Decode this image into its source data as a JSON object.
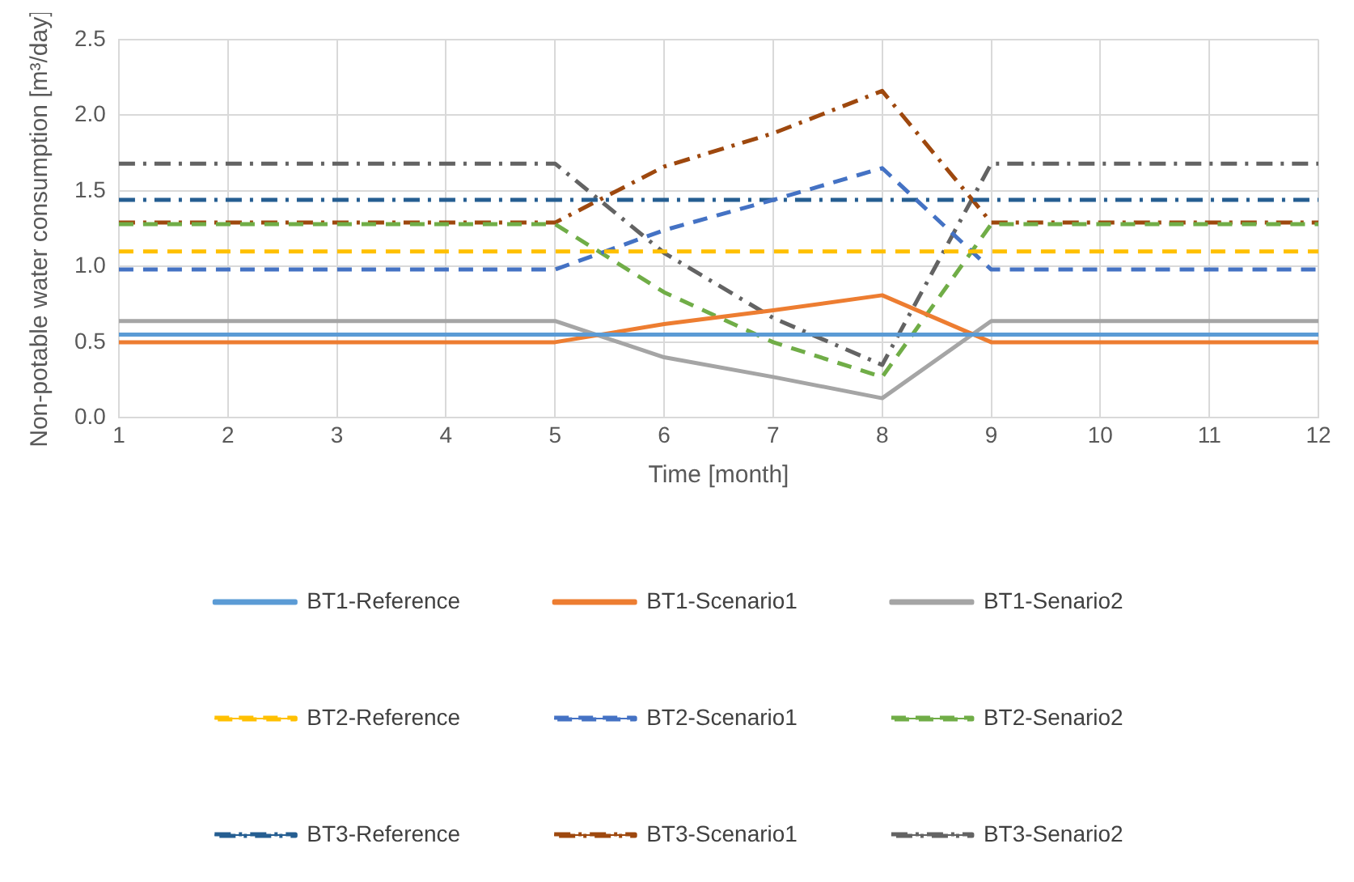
{
  "chart_data": {
    "type": "line",
    "xlabel": "Time [month]",
    "ylabel": "Non-potable water consumption [m³/day]",
    "x": [
      1,
      2,
      3,
      4,
      5,
      6,
      7,
      8,
      9,
      10,
      11,
      12
    ],
    "xlim": [
      1,
      12
    ],
    "xticks": [
      1,
      2,
      3,
      4,
      5,
      6,
      7,
      8,
      9,
      10,
      11,
      12
    ],
    "ylim": [
      0,
      2.5
    ],
    "yticks": [
      {
        "value": 0,
        "label": "0.0"
      },
      {
        "value": 0.5,
        "label": "0.5"
      },
      {
        "value": 1,
        "label": "1.0"
      },
      {
        "value": 1.5,
        "label": "1.5"
      },
      {
        "value": 2,
        "label": "2.0"
      },
      {
        "value": 2.5,
        "label": "2.5"
      }
    ],
    "grid": true,
    "legend": "bottom",
    "marker": "none",
    "series": [
      {
        "name": "BT1-Reference",
        "color": "#5b9bd5",
        "line_style": "solid",
        "values": [
          0.55,
          0.55,
          0.55,
          0.55,
          0.55,
          0.55,
          0.55,
          0.55,
          0.55,
          0.55,
          0.55,
          0.55
        ]
      },
      {
        "name": "BT1-Scenario1",
        "color": "#ed7d31",
        "line_style": "solid",
        "values": [
          0.5,
          0.5,
          0.5,
          0.5,
          0.5,
          0.62,
          0.71,
          0.81,
          0.5,
          0.5,
          0.5,
          0.5
        ]
      },
      {
        "name": "BT1-Senario2",
        "color": "#a5a5a5",
        "line_style": "solid",
        "values": [
          0.64,
          0.64,
          0.64,
          0.64,
          0.64,
          0.4,
          0.27,
          0.13,
          0.64,
          0.64,
          0.64,
          0.64
        ]
      },
      {
        "name": "BT2-Reference",
        "color": "#ffc000",
        "line_style": "dashed",
        "values": [
          1.1,
          1.1,
          1.1,
          1.1,
          1.1,
          1.1,
          1.1,
          1.1,
          1.1,
          1.1,
          1.1,
          1.1
        ]
      },
      {
        "name": "BT2-Scenario1",
        "color": "#4472c4",
        "line_style": "dashed",
        "values": [
          0.98,
          0.98,
          0.98,
          0.98,
          0.98,
          1.24,
          1.44,
          1.65,
          0.98,
          0.98,
          0.98,
          0.98
        ]
      },
      {
        "name": "BT2-Senario2",
        "color": "#70ad47",
        "line_style": "dashed",
        "values": [
          1.28,
          1.28,
          1.28,
          1.28,
          1.28,
          0.83,
          0.5,
          0.27,
          1.28,
          1.28,
          1.28,
          1.28
        ]
      },
      {
        "name": "BT3-Reference",
        "color": "#255e91",
        "line_style": "dashdot",
        "values": [
          1.44,
          1.44,
          1.44,
          1.44,
          1.44,
          1.44,
          1.44,
          1.44,
          1.44,
          1.44,
          1.44,
          1.44
        ]
      },
      {
        "name": "BT3-Scenario1",
        "color": "#9e480e",
        "line_style": "dashdot",
        "values": [
          1.29,
          1.29,
          1.29,
          1.29,
          1.29,
          1.66,
          1.88,
          2.16,
          1.29,
          1.29,
          1.29,
          1.29
        ]
      },
      {
        "name": "BT3-Senario2",
        "color": "#636363",
        "line_style": "dashdot",
        "values": [
          1.68,
          1.68,
          1.68,
          1.68,
          1.68,
          1.09,
          0.66,
          0.35,
          1.68,
          1.68,
          1.68,
          1.68
        ]
      }
    ]
  }
}
